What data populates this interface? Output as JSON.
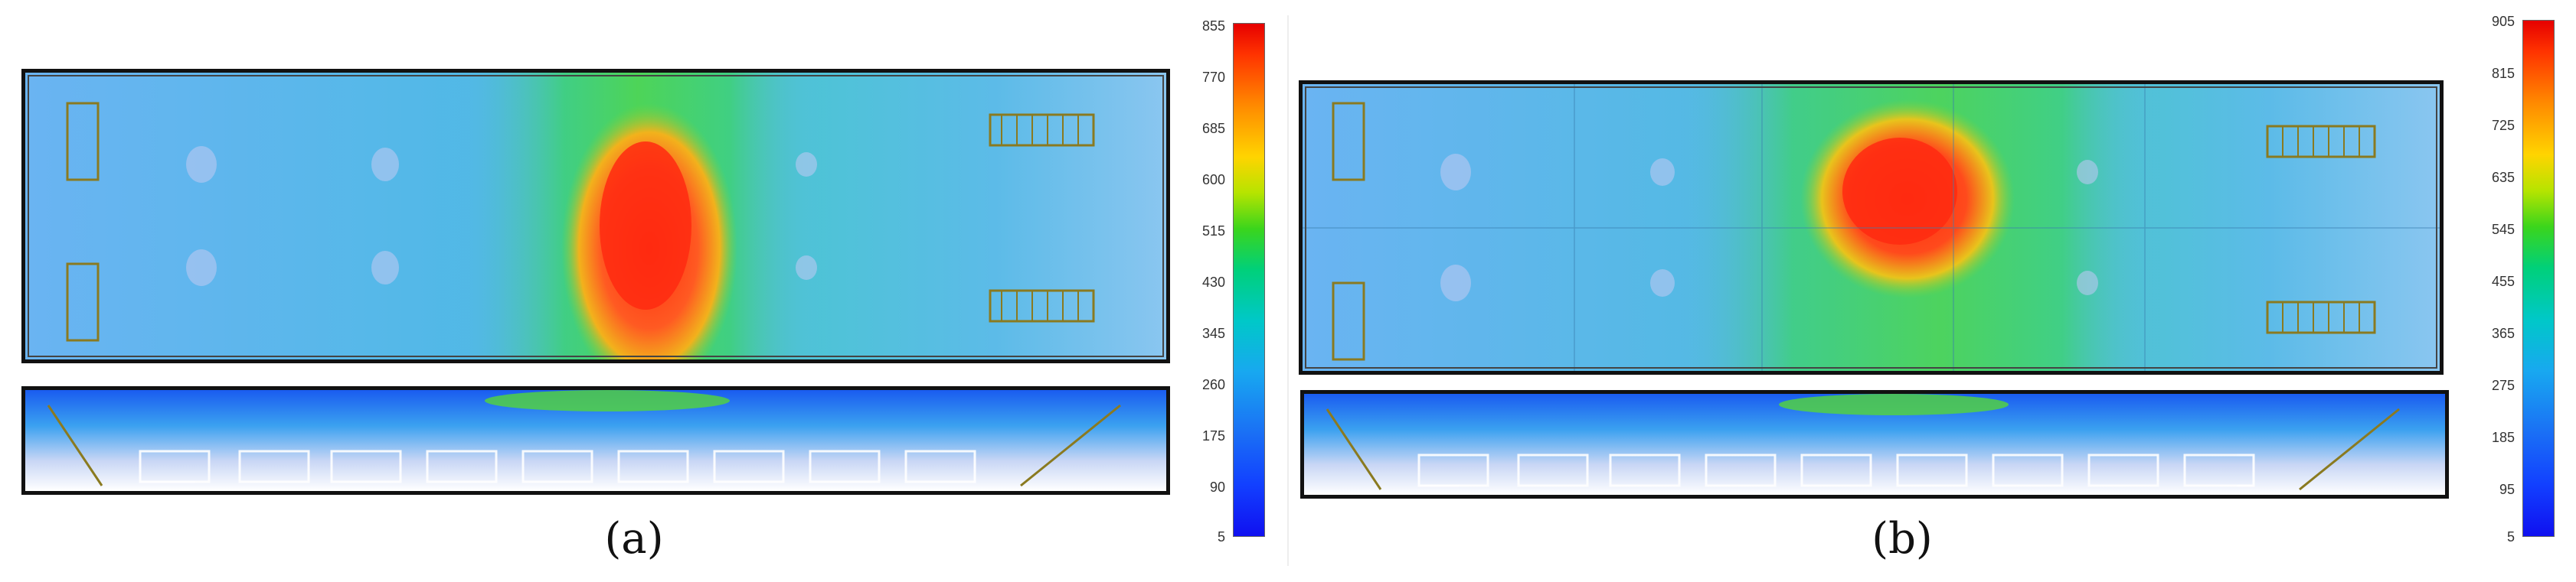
{
  "panels": [
    {
      "caption": "(a)",
      "colorbar_ticks": [
        "855",
        "770",
        "685",
        "600",
        "515",
        "430",
        "345",
        "260",
        "175",
        "90",
        "5"
      ]
    },
    {
      "caption": "(b)",
      "colorbar_ticks": [
        "905",
        "815",
        "725",
        "635",
        "545",
        "455",
        "365",
        "275",
        "185",
        "95",
        "5"
      ]
    }
  ],
  "colors": {
    "background_blue": "#5fb3f0",
    "hot_red": "#f03a1c",
    "green": "#55d63a",
    "frame": "#111111"
  }
}
